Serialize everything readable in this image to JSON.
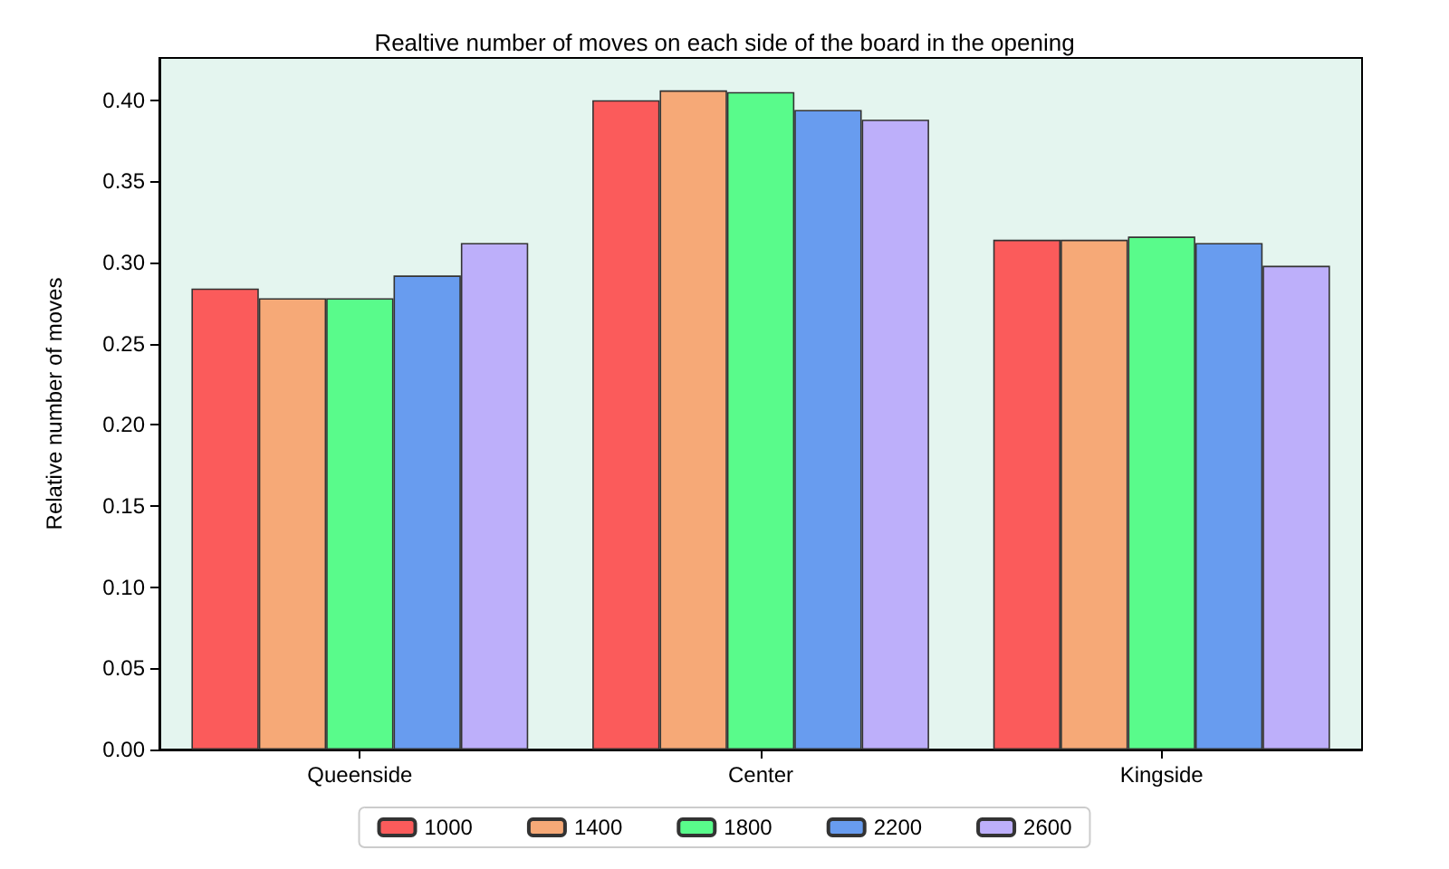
{
  "chart_data": {
    "type": "bar",
    "title": "Realtive number of moves on each side of the board in the opening",
    "ylabel": "Relative number of moves",
    "categories": [
      "Queenside",
      "Center",
      "Kingside"
    ],
    "series": [
      {
        "name": "1000",
        "color": "#fb5b5b",
        "values": [
          0.284,
          0.4,
          0.314
        ]
      },
      {
        "name": "1400",
        "color": "#f6a977",
        "values": [
          0.278,
          0.406,
          0.314
        ]
      },
      {
        "name": "1800",
        "color": "#59fb8b",
        "values": [
          0.278,
          0.405,
          0.316
        ]
      },
      {
        "name": "2200",
        "color": "#689cef",
        "values": [
          0.292,
          0.394,
          0.312
        ]
      },
      {
        "name": "2600",
        "color": "#bdaffa",
        "values": [
          0.312,
          0.388,
          0.298
        ]
      }
    ],
    "ylim": [
      0,
      0.426
    ],
    "yticks": [
      {
        "value": 0,
        "label": "0.00"
      },
      0.05,
      {
        "value": 0.1,
        "label": "0.10"
      },
      0.15,
      {
        "value": 0.2,
        "label": "0.20"
      },
      0.25,
      {
        "value": 0.3,
        "label": "0.30"
      },
      0.35,
      {
        "value": 0.4,
        "label": "0.40"
      }
    ],
    "grid": false,
    "legend": "bottom"
  }
}
